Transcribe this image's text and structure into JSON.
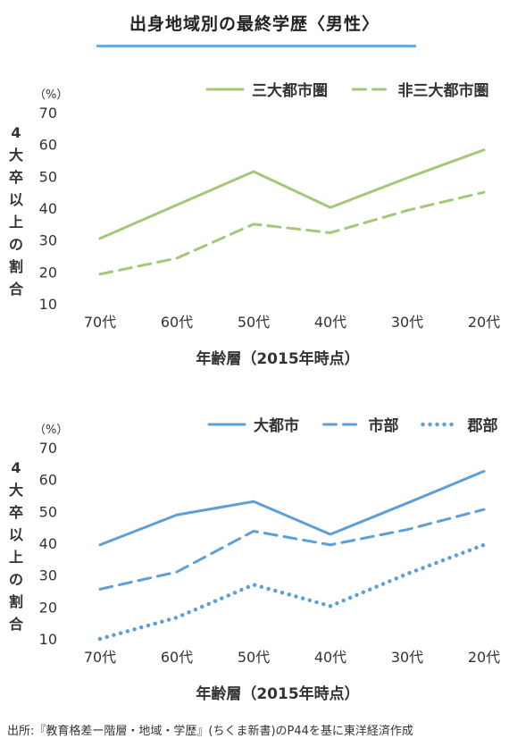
{
  "title": "出身地域別の最終学歴〈男性〉",
  "source": "出所:『教育格差ー階層・地域・学歴』(ちくま新書)のP44を基に東洋経済作成",
  "chart_data": [
    {
      "type": "line",
      "unit_label": "（%）",
      "ylabel": "4大卒以上の割合",
      "xlabel": "年齢層（2015年時点）",
      "categories": [
        "70代",
        "60代",
        "50代",
        "40代",
        "30代",
        "20代"
      ],
      "ylim": [
        10,
        70
      ],
      "yticks": [
        10,
        20,
        30,
        40,
        50,
        60,
        70
      ],
      "grid": false,
      "legend_position": "top-right",
      "series": [
        {
          "name": "三大都市圏",
          "values": [
            30.5,
            41,
            51.5,
            40.2,
            49.5,
            58.3
          ],
          "color": "#a5c878",
          "dash": "solid"
        },
        {
          "name": "非三大都市圏",
          "values": [
            19.3,
            24.3,
            35,
            32.3,
            39.3,
            45
          ],
          "color": "#a5c878",
          "dash": "dashed"
        }
      ]
    },
    {
      "type": "line",
      "unit_label": "（%）",
      "ylabel": "4大卒以上の割合",
      "xlabel": "年齢層（2015年時点）",
      "categories": [
        "70代",
        "60代",
        "50代",
        "40代",
        "30代",
        "20代"
      ],
      "ylim": [
        10,
        70
      ],
      "yticks": [
        10,
        20,
        30,
        40,
        50,
        60,
        70
      ],
      "grid": false,
      "legend_position": "top-right",
      "series": [
        {
          "name": "大都市",
          "values": [
            39.5,
            48.9,
            53.1,
            42.8,
            52.6,
            62.6
          ],
          "color": "#5d9fd6",
          "dash": "solid"
        },
        {
          "name": "市部",
          "values": [
            25.6,
            31,
            43.8,
            39.5,
            44.3,
            50.6
          ],
          "color": "#5d9fd6",
          "dash": "dashed"
        },
        {
          "name": "郡部",
          "values": [
            10,
            16.7,
            27,
            20.3,
            30.4,
            39.5
          ],
          "color": "#5d9fd6",
          "dash": "dotted"
        }
      ]
    }
  ]
}
